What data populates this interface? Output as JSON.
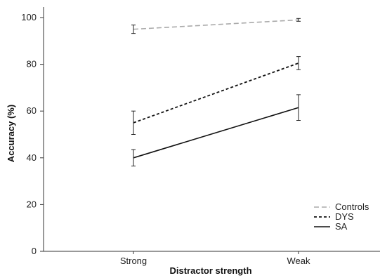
{
  "chart_data": {
    "type": "line",
    "categories": [
      "Strong",
      "Weak"
    ],
    "xlabel": "Distractor strength",
    "ylabel": "Accuracy (%)",
    "ylim": [
      0,
      100
    ],
    "yticks": [
      0,
      20,
      40,
      60,
      80,
      100
    ],
    "grid": false,
    "legend_position": "bottom-right",
    "series": [
      {
        "name": "Controls",
        "values": [
          95,
          99
        ],
        "errors": [
          1.8,
          0.6
        ],
        "color": "#aaaaaa",
        "dash": "dashed"
      },
      {
        "name": "DYS",
        "values": [
          55,
          80.5
        ],
        "errors": [
          5,
          2.8
        ],
        "color": "#111111",
        "dash": "dotted"
      },
      {
        "name": "SA",
        "values": [
          40,
          61.5
        ],
        "errors": [
          3.5,
          5.5
        ],
        "color": "#111111",
        "dash": "solid"
      }
    ]
  }
}
